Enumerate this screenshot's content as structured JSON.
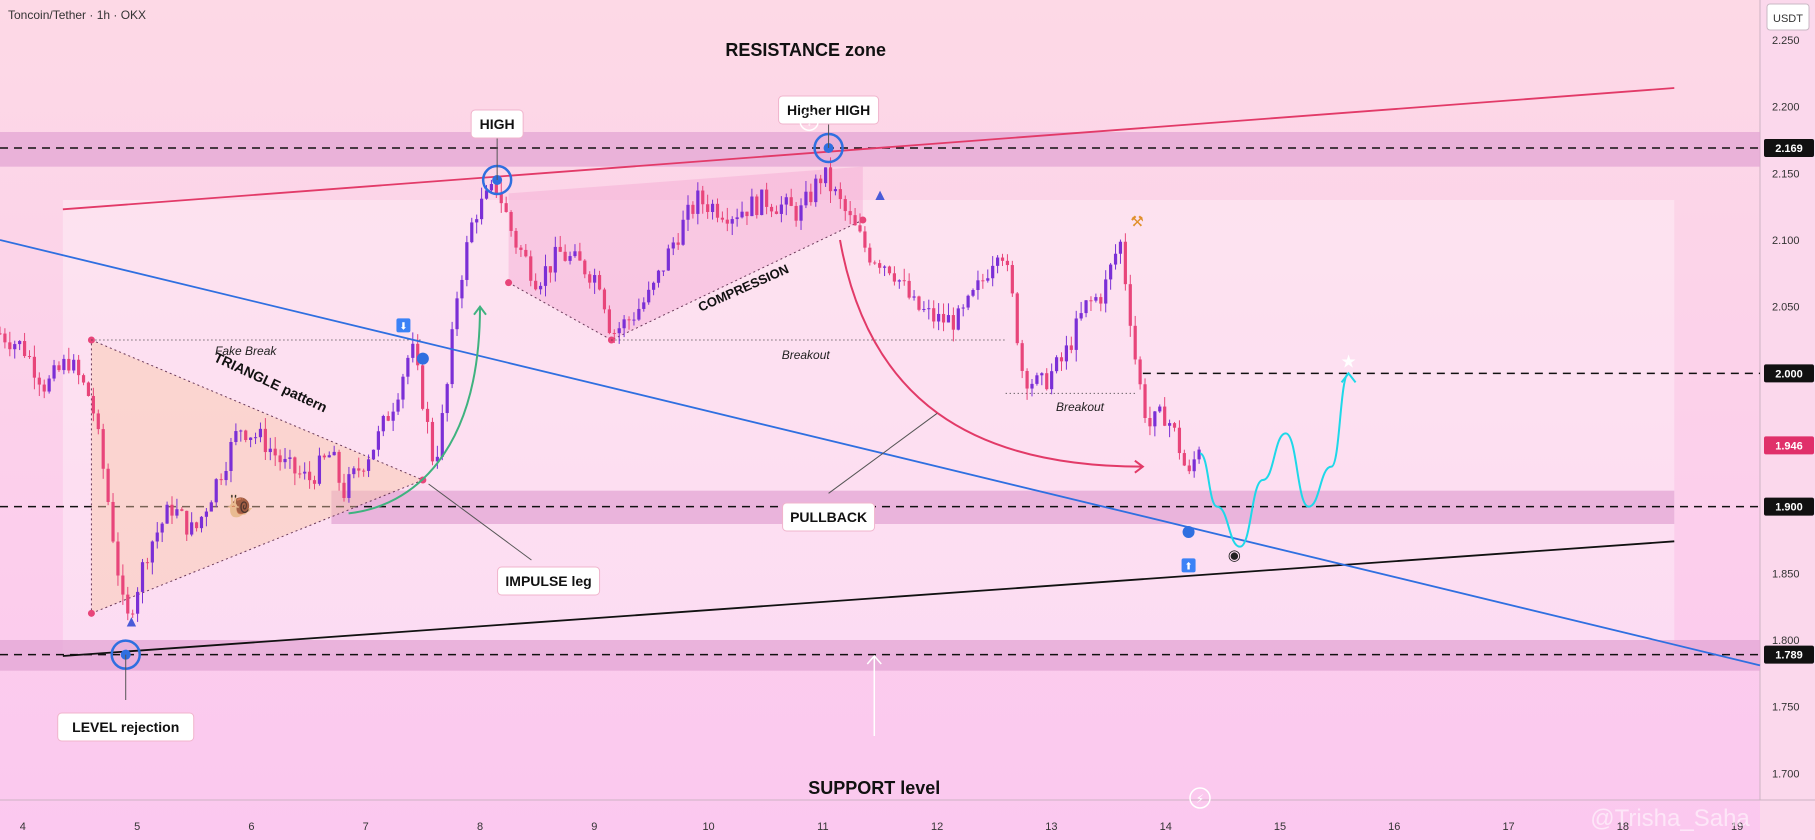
{
  "header": {
    "symbol_title": "Toncoin/Tether · 1h · OKX",
    "currency": "USDT"
  },
  "colors": {
    "background": "#fdd6ec",
    "zone": "#e3a6d4",
    "bull_candle": "#7b2fd6",
    "bear_candle": "#e8457a",
    "resistance_line": "#e23a68",
    "trend_line": "#2f6fe0",
    "support_line": "#111111",
    "projection": "#1ed8e8",
    "impulse_arrow": "#3fb27f",
    "price_tag_current": "#e0306a"
  },
  "chart_data": {
    "type": "candlestick",
    "title": "Toncoin/Tether · 1h · OKX",
    "y_axis": {
      "range": [
        1.68,
        2.28
      ],
      "ticks": [
        1.7,
        1.75,
        1.8,
        1.85,
        1.9,
        1.95,
        2.0,
        2.05,
        2.1,
        2.15,
        2.2,
        2.25
      ],
      "tick_labels": [
        "1.700",
        "1.750",
        "1.800",
        "1.850",
        "1.900",
        "1.950",
        "2.000",
        "2.050",
        "2.100",
        "2.150",
        "2.200",
        "2.250"
      ]
    },
    "x_axis": {
      "range": [
        3.8,
        19.2
      ],
      "ticks": [
        4,
        5,
        6,
        7,
        8,
        9,
        10,
        11,
        12,
        13,
        14,
        15,
        16,
        17,
        18,
        19
      ],
      "tick_labels": [
        "4",
        "5",
        "6",
        "7",
        "8",
        "9",
        "10",
        "11",
        "12",
        "13",
        "14",
        "15",
        "16",
        "17",
        "18",
        "19"
      ]
    },
    "price_tags": [
      {
        "value": "2.169",
        "y": 2.169,
        "style": "dark"
      },
      {
        "value": "2.000",
        "y": 2.0,
        "style": "dark"
      },
      {
        "value": "1.946",
        "y": 1.946,
        "style": "current"
      },
      {
        "value": "1.900",
        "y": 1.9,
        "style": "dark"
      },
      {
        "value": "1.789",
        "y": 1.789,
        "style": "dark"
      }
    ],
    "candle_path": [
      [
        3.8,
        2.03
      ],
      [
        4.0,
        2.02
      ],
      [
        4.2,
        1.99
      ],
      [
        4.4,
        2.01
      ],
      [
        4.6,
        1.98
      ],
      [
        4.72,
        1.92
      ],
      [
        4.82,
        1.86
      ],
      [
        4.9,
        1.81
      ],
      [
        5.0,
        1.84
      ],
      [
        5.1,
        1.87
      ],
      [
        5.3,
        1.9
      ],
      [
        5.5,
        1.88
      ],
      [
        5.7,
        1.92
      ],
      [
        5.9,
        1.96
      ],
      [
        6.1,
        1.95
      ],
      [
        6.3,
        1.93
      ],
      [
        6.5,
        1.92
      ],
      [
        6.7,
        1.94
      ],
      [
        6.8,
        1.91
      ],
      [
        6.95,
        1.93
      ],
      [
        7.1,
        1.95
      ],
      [
        7.25,
        1.98
      ],
      [
        7.4,
        2.02
      ],
      [
        7.5,
        1.98
      ],
      [
        7.6,
        1.93
      ],
      [
        7.7,
        1.98
      ],
      [
        7.8,
        2.06
      ],
      [
        7.95,
        2.12
      ],
      [
        8.15,
        2.14
      ],
      [
        8.3,
        2.1
      ],
      [
        8.5,
        2.07
      ],
      [
        8.7,
        2.09
      ],
      [
        8.9,
        2.08
      ],
      [
        9.05,
        2.07
      ],
      [
        9.15,
        2.03
      ],
      [
        9.3,
        2.04
      ],
      [
        9.5,
        2.06
      ],
      [
        9.7,
        2.1
      ],
      [
        9.9,
        2.13
      ],
      [
        10.2,
        2.12
      ],
      [
        10.5,
        2.13
      ],
      [
        10.8,
        2.12
      ],
      [
        11.0,
        2.15
      ],
      [
        11.2,
        2.12
      ],
      [
        11.4,
        2.09
      ],
      [
        11.6,
        2.08
      ],
      [
        11.8,
        2.05
      ],
      [
        12.0,
        2.04
      ],
      [
        12.2,
        2.04
      ],
      [
        12.4,
        2.07
      ],
      [
        12.55,
        2.1
      ],
      [
        12.65,
        2.06
      ],
      [
        12.75,
        2.0
      ],
      [
        12.9,
        1.99
      ],
      [
        13.1,
        2.01
      ],
      [
        13.3,
        2.05
      ],
      [
        13.45,
        2.06
      ],
      [
        13.6,
        2.1
      ],
      [
        13.68,
        2.05
      ],
      [
        13.75,
        2.0
      ],
      [
        13.85,
        1.96
      ],
      [
        14.0,
        1.97
      ],
      [
        14.1,
        1.95
      ],
      [
        14.2,
        1.92
      ],
      [
        14.3,
        1.95
      ]
    ],
    "resistance_zone": [
      2.155,
      2.181
    ],
    "support_zones": [
      [
        1.887,
        1.912
      ],
      [
        1.777,
        1.8
      ]
    ],
    "horizontal_levels": [
      2.169,
      2.0,
      1.9,
      1.789
    ],
    "resistance_line": {
      "x": [
        4.35,
        18.45
      ],
      "y": [
        2.123,
        2.214
      ]
    },
    "support_line": {
      "x": [
        4.35,
        18.45
      ],
      "y": [
        1.788,
        1.874
      ]
    },
    "trend_line": {
      "x": [
        3.8,
        19.2
      ],
      "y": [
        2.1,
        1.781
      ]
    },
    "triangle": {
      "x": [
        4.6,
        7.5,
        4.6
      ],
      "y": [
        2.025,
        1.92,
        1.82
      ]
    },
    "compression": {
      "x": [
        8.25,
        9.15,
        11.35
      ],
      "y": [
        2.068,
        2.025,
        2.115
      ]
    },
    "projection_path": {
      "x": [
        14.3,
        14.45,
        14.65,
        14.85,
        15.05,
        15.25,
        15.45,
        15.6
      ],
      "y": [
        1.94,
        1.9,
        1.87,
        1.92,
        1.955,
        1.9,
        1.93,
        2.0
      ]
    },
    "annotations": {
      "resistance": "RESISTANCE zone",
      "high": "HIGH",
      "higher_high": "Higher HIGH",
      "compression": "COMPRESSION",
      "triangle": "TRIANGLE pattern",
      "fake_break": "Fake Break",
      "breakout_1": "Breakout",
      "breakout_2": "Breakout",
      "impulse": "IMPULSE leg",
      "pullback": "PULLBACK",
      "level_rejection": "LEVEL rejection",
      "support": "SUPPORT level"
    },
    "key_points": [
      {
        "name": "level-rejection-point",
        "x": 4.9,
        "y": 1.789
      },
      {
        "name": "high-point",
        "x": 8.15,
        "y": 2.145
      },
      {
        "name": "higher-high-point",
        "x": 11.05,
        "y": 2.169
      },
      {
        "name": "fake-break-point",
        "x": 7.5,
        "y": 2.011
      },
      {
        "name": "pullback-touch-point",
        "x": 14.2,
        "y": 1.881
      }
    ]
  },
  "watermark": "@Trisha_Saha"
}
